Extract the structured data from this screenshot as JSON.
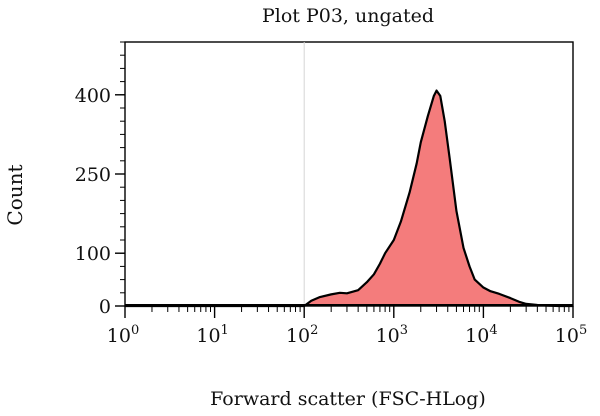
{
  "chart_data": {
    "type": "area",
    "title": "Plot P03, ungated",
    "xlabel": "Forward scatter (FSC-HLog)",
    "ylabel": "Count",
    "x_scale": "log",
    "xlim": [
      1,
      100000
    ],
    "ylim": [
      0,
      500
    ],
    "x_ticks": [
      {
        "value": 1,
        "base": "10",
        "exp": "0"
      },
      {
        "value": 10,
        "base": "10",
        "exp": "1"
      },
      {
        "value": 100,
        "base": "10",
        "exp": "2"
      },
      {
        "value": 1000,
        "base": "10",
        "exp": "3"
      },
      {
        "value": 10000,
        "base": "10",
        "exp": "4"
      },
      {
        "value": 100000,
        "base": "10",
        "exp": "5"
      }
    ],
    "y_ticks": [
      0,
      100,
      250,
      400
    ],
    "grid": false,
    "reference_line_x": 100,
    "fill_color": "#f47c7c",
    "line_color": "#000000",
    "series": [
      {
        "x": [
          1,
          100,
          120,
          150,
          200,
          250,
          300,
          400,
          500,
          600,
          700,
          800,
          1000,
          1200,
          1500,
          1800,
          2000,
          2400,
          2800,
          3000,
          3300,
          3700,
          4200,
          5000,
          6000,
          7000,
          8000,
          10000,
          12000,
          15000,
          20000,
          25000,
          30000,
          40000,
          50000,
          70000,
          100000
        ],
        "y": [
          0,
          0,
          10,
          17,
          22,
          25,
          24,
          30,
          45,
          60,
          80,
          100,
          125,
          160,
          215,
          270,
          310,
          360,
          398,
          408,
          398,
          350,
          280,
          180,
          110,
          75,
          50,
          35,
          28,
          23,
          15,
          8,
          4,
          2,
          1,
          0,
          0
        ]
      }
    ]
  }
}
